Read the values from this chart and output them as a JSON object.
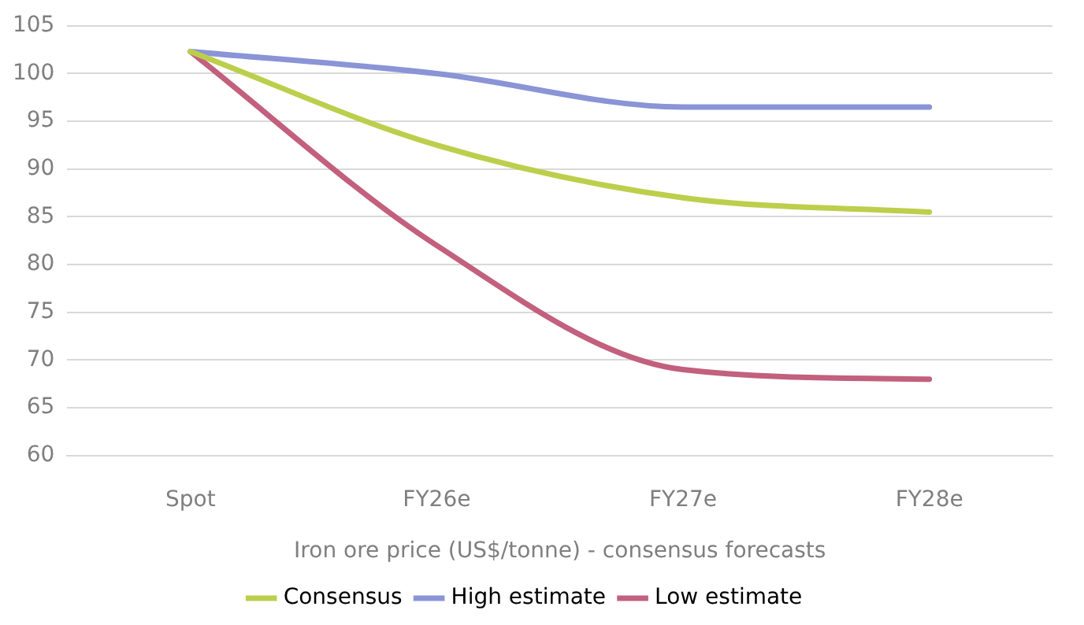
{
  "chart_data": {
    "type": "line",
    "xlabel": "Iron ore price (US$/tonne) - consensus forecasts",
    "categories": [
      "Spot",
      "FY26e",
      "FY27e",
      "FY28e"
    ],
    "series": [
      {
        "name": "Consensus",
        "color": "#bccf4c",
        "values": [
          102.3,
          92.5,
          87,
          85.5
        ]
      },
      {
        "name": "High estimate",
        "color": "#8a94d6",
        "values": [
          102.3,
          100,
          96.5,
          96.5
        ]
      },
      {
        "name": "Low estimate",
        "color": "#c2607e",
        "values": [
          102.3,
          82,
          69,
          68
        ]
      }
    ],
    "ylim": [
      60,
      105
    ],
    "yticks": [
      60,
      65,
      70,
      75,
      80,
      85,
      90,
      95,
      100,
      105
    ],
    "grid": "y",
    "legend": "bottom",
    "marker": "none",
    "line_style": "solid"
  }
}
